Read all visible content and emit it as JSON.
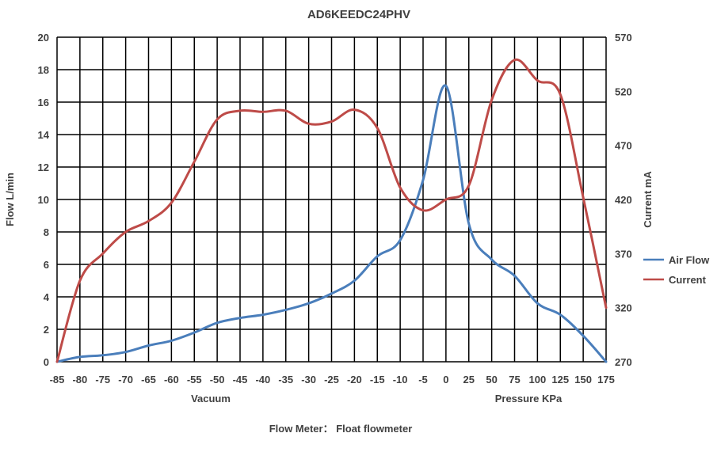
{
  "chart_data": {
    "type": "line",
    "title": "AD6KEEDC24PHV",
    "ylabel_left": "Flow  L/min",
    "ylabel_right": "Current  mA",
    "xlabel_left": "Vacuum",
    "xlabel_right": "Pressure   KPa",
    "footer": "Flow Meter：  Float flowmeter",
    "x_ticks": [
      "-85",
      "-80",
      "-75",
      "-70",
      "-65",
      "-60",
      "-55",
      "-50",
      "-45",
      "-40",
      "-35",
      "-30",
      "-25",
      "-20",
      "-15",
      "-10",
      "-5",
      "0",
      "25",
      "50",
      "75",
      "100",
      "125",
      "150",
      "175"
    ],
    "y_left": {
      "min": 0,
      "max": 20,
      "step": 2
    },
    "y_right": {
      "min": 270,
      "max": 570,
      "ticks": [
        270,
        320,
        370,
        420,
        470,
        520,
        570
      ]
    },
    "grid": true,
    "legend_position": "right",
    "series": [
      {
        "name": "Air Flow",
        "color": "#4a7ebb",
        "axis": "left",
        "values": [
          0,
          0.3,
          0.4,
          0.6,
          1.0,
          1.3,
          1.8,
          2.4,
          2.7,
          2.9,
          3.2,
          3.6,
          4.2,
          5.0,
          6.5,
          7.5,
          11.2,
          17.0,
          8.5,
          6.3,
          5.3,
          3.6,
          2.9,
          1.6,
          0
        ]
      },
      {
        "name": "Current",
        "color": "#be4b48",
        "axis": "right",
        "values": [
          270,
          345,
          370,
          390,
          400,
          417,
          455,
          494,
          502,
          501,
          502,
          490,
          492,
          503,
          486,
          431,
          410,
          420,
          433,
          512,
          549,
          530,
          517,
          422,
          320
        ]
      }
    ]
  }
}
